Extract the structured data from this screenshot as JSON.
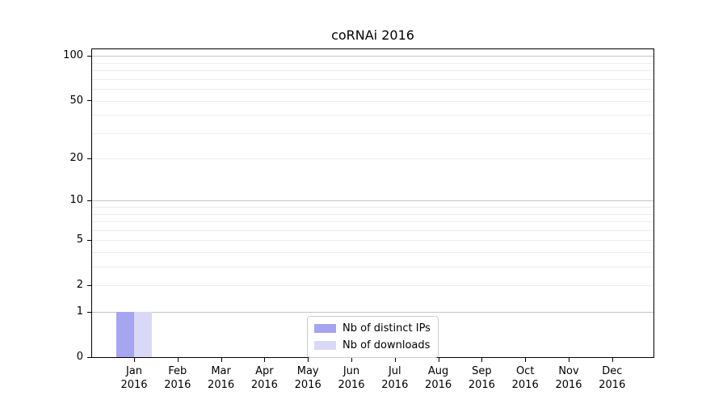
{
  "chart_data": {
    "type": "bar",
    "title": "coRNAi 2016",
    "scale": "log1p",
    "ylim": [
      0,
      111
    ],
    "yticks": [
      0,
      1,
      2,
      5,
      10,
      20,
      50,
      100
    ],
    "grid": {
      "major": [
        1,
        10,
        100
      ],
      "minor": [
        2,
        3,
        4,
        5,
        6,
        7,
        8,
        9,
        20,
        30,
        40,
        50,
        60,
        70,
        80,
        90
      ]
    },
    "categories": [
      "Jan 2016",
      "Feb 2016",
      "Mar 2016",
      "Apr 2016",
      "May 2016",
      "Jun 2016",
      "Jul 2016",
      "Aug 2016",
      "Sep 2016",
      "Oct 2016",
      "Nov 2016",
      "Dec 2016"
    ],
    "series": [
      {
        "name": "Nb of distinct IPs",
        "color": "#a5a5f0",
        "values": [
          1,
          0,
          0,
          0,
          0,
          0,
          0,
          0,
          0,
          0,
          0,
          0
        ]
      },
      {
        "name": "Nb of downloads",
        "color": "#d9d9f7",
        "values": [
          1,
          0,
          0,
          0,
          0,
          0,
          0,
          0,
          0,
          0,
          0,
          0
        ]
      }
    ],
    "legend_position": "bottom-center",
    "colors": {
      "grid_major": "#c6c6c6",
      "grid_minor": "#ededed",
      "axis": "#000000",
      "background": "#ffffff",
      "text": "#000000"
    }
  }
}
